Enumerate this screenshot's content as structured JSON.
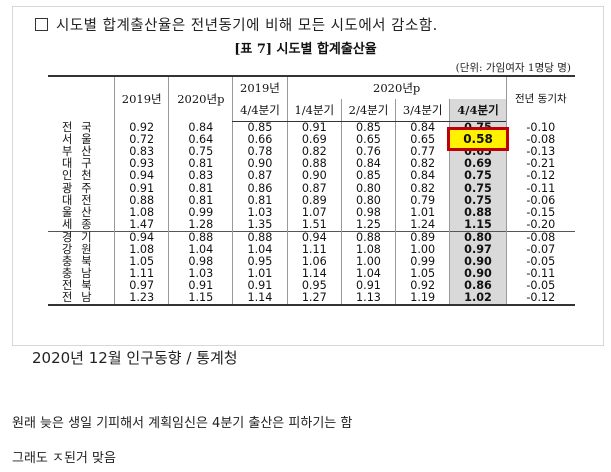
{
  "heading": "시도별 합계출산율은 전년동기에 비해 모든 시도에서 감소함.",
  "caption": "[표 7] 시도별 합계출산율",
  "unit": "(단위: 가임여자 1명당 명)",
  "headers": {
    "c2019": "2019년",
    "c2020p": "2020년p",
    "g2019": "2019년",
    "g2020": "2020년p",
    "q44_2019": "4/4분기",
    "q1": "1/4분기",
    "q2": "2/4분기",
    "q3": "3/4분기",
    "q4": "4/4분기",
    "change": "전년 동기차"
  },
  "rows": [
    {
      "region": "전국",
      "v": [
        "0.92",
        "0.84",
        "0.85",
        "0.91",
        "0.85",
        "0.84",
        "0.75",
        "-0.10"
      ]
    },
    {
      "region": "서울",
      "v": [
        "0.72",
        "0.64",
        "0.66",
        "0.69",
        "0.65",
        "0.65",
        "0.58",
        "-0.08"
      ]
    },
    {
      "region": "부산",
      "v": [
        "0.83",
        "0.75",
        "0.78",
        "0.82",
        "0.76",
        "0.77",
        "0.65",
        "-0.13"
      ]
    },
    {
      "region": "대구",
      "v": [
        "0.93",
        "0.81",
        "0.90",
        "0.88",
        "0.84",
        "0.82",
        "0.69",
        "-0.21"
      ]
    },
    {
      "region": "인천",
      "v": [
        "0.94",
        "0.83",
        "0.87",
        "0.90",
        "0.85",
        "0.84",
        "0.75",
        "-0.12"
      ]
    },
    {
      "region": "광주",
      "v": [
        "0.91",
        "0.81",
        "0.86",
        "0.87",
        "0.80",
        "0.82",
        "0.75",
        "-0.11"
      ]
    },
    {
      "region": "대전",
      "v": [
        "0.88",
        "0.81",
        "0.81",
        "0.89",
        "0.80",
        "0.79",
        "0.75",
        "-0.06"
      ]
    },
    {
      "region": "울산",
      "v": [
        "1.08",
        "0.99",
        "1.03",
        "1.07",
        "0.98",
        "1.01",
        "0.88",
        "-0.15"
      ]
    },
    {
      "region": "세종",
      "v": [
        "1.47",
        "1.28",
        "1.35",
        "1.51",
        "1.25",
        "1.24",
        "1.15",
        "-0.20"
      ]
    },
    {
      "region": "경기",
      "v": [
        "0.94",
        "0.88",
        "0.88",
        "0.94",
        "0.88",
        "0.89",
        "0.80",
        "-0.08"
      ]
    },
    {
      "region": "강원",
      "v": [
        "1.08",
        "1.04",
        "1.04",
        "1.11",
        "1.08",
        "1.00",
        "0.97",
        "-0.07"
      ]
    },
    {
      "region": "충북",
      "v": [
        "1.05",
        "0.98",
        "0.95",
        "1.06",
        "1.00",
        "0.99",
        "0.90",
        "-0.05"
      ]
    },
    {
      "region": "충남",
      "v": [
        "1.11",
        "1.03",
        "1.01",
        "1.14",
        "1.04",
        "1.05",
        "0.90",
        "-0.11"
      ]
    },
    {
      "region": "전북",
      "v": [
        "0.97",
        "0.91",
        "0.91",
        "0.95",
        "0.91",
        "0.92",
        "0.86",
        "-0.05"
      ]
    },
    {
      "region": "전남",
      "v": [
        "1.23",
        "1.15",
        "1.14",
        "1.27",
        "1.13",
        "1.19",
        "1.02",
        "-0.12"
      ]
    }
  ],
  "highlight_value": "0.58",
  "source": "2020년 12월 인구동향 / 통계청",
  "comment1": "원래 늦은 생일 기피해서 계획임신은 4분기 출산은 피하기는 함",
  "comment2": "그래도 ㅈ된거 맞음"
}
